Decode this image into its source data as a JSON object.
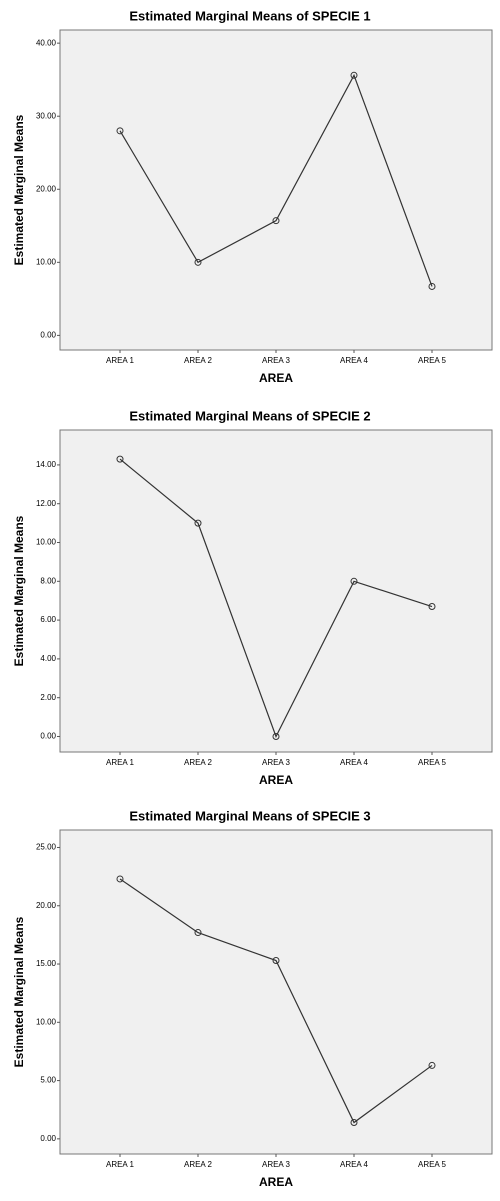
{
  "chart_data": [
    {
      "type": "line",
      "title": "Estimated Marginal Means of SPECIE 1",
      "x_label": "AREA",
      "y_label": "Estimated Marginal Means",
      "categories": [
        "AREA 1",
        "AREA 2",
        "AREA 3",
        "AREA 4",
        "AREA 5"
      ],
      "values": [
        28.0,
        10.0,
        15.7,
        35.6,
        6.7
      ],
      "color": "#333333",
      "ylim": [
        -2,
        41.8
      ],
      "yticks": [
        {
          "value": 0,
          "label": "0.00"
        },
        {
          "value": 10,
          "label": "10.00"
        },
        {
          "value": 20,
          "label": "20.00"
        },
        {
          "value": 30,
          "label": "30.00"
        },
        {
          "value": 40,
          "label": "40.00"
        }
      ]
    },
    {
      "type": "line",
      "title": "Estimated Marginal Means of SPECIE 2",
      "x_label": "AREA",
      "y_label": "Estimated Marginal Means",
      "categories": [
        "AREA 1",
        "AREA 2",
        "AREA 3",
        "AREA 4",
        "AREA 5"
      ],
      "values": [
        14.3,
        11.0,
        0.0,
        8.0,
        6.7
      ],
      "color": "#333333",
      "ylim": [
        -0.8,
        15.8
      ],
      "yticks": [
        {
          "value": 0,
          "label": "0.00"
        },
        {
          "value": 2,
          "label": "2.00"
        },
        {
          "value": 4,
          "label": "4.00"
        },
        {
          "value": 6,
          "label": "6.00"
        },
        {
          "value": 8,
          "label": "8.00"
        },
        {
          "value": 10,
          "label": "10.00"
        },
        {
          "value": 12,
          "label": "12.00"
        },
        {
          "value": 14,
          "label": "14.00"
        }
      ]
    },
    {
      "type": "line",
      "title": "Estimated Marginal Means of SPECIE 3",
      "x_label": "AREA",
      "y_label": "Estimated Marginal Means",
      "categories": [
        "AREA 1",
        "AREA 2",
        "AREA 3",
        "AREA 4",
        "AREA 5"
      ],
      "values": [
        22.3,
        17.7,
        15.3,
        1.4,
        6.3
      ],
      "color": "#333333",
      "ylim": [
        -1.3,
        26.5
      ],
      "yticks": [
        {
          "value": 0,
          "label": "0.00"
        },
        {
          "value": 5,
          "label": "5.00"
        },
        {
          "value": 10,
          "label": "10.00"
        },
        {
          "value": 15,
          "label": "15.00"
        },
        {
          "value": 20,
          "label": "20.00"
        },
        {
          "value": 25,
          "label": "25.00"
        }
      ]
    }
  ]
}
